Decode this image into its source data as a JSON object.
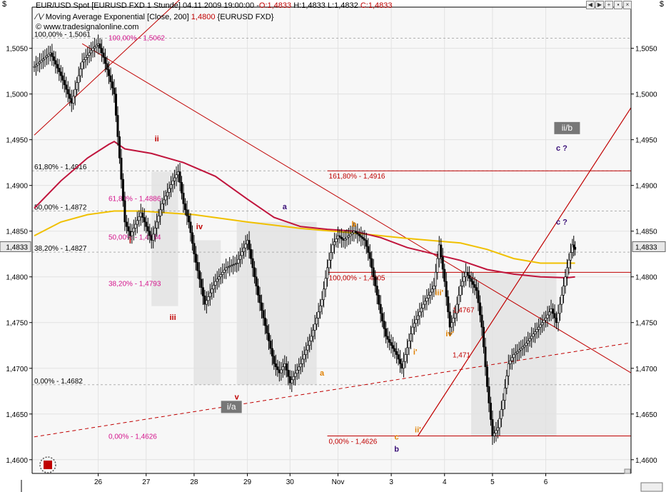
{
  "header": {
    "symbol_line": "EUR/USD Spot [EURUSD FXD  1 Stunde]",
    "datetime": "04.11.2009 19:00:00",
    "ohlc": {
      "O": "O:1,4833",
      "H": "H:1,4833",
      "L": "L:1,4832",
      "C": "C:1,4833"
    },
    "indicator": "Moving Average Exponential [Close, 200]",
    "indicator_value": "1,4800",
    "indicator_symbol": "{EURUSD FXD}",
    "copyright": "© www.tradesignalonline.com",
    "currency_left": "$",
    "currency_right": "$"
  },
  "window_buttons": [
    "arrow-left-icon",
    "arrow-right-icon",
    "zoom-icon",
    "pin-icon",
    "close-icon"
  ],
  "colors": {
    "price": "#000000",
    "ema200": "#c0143c",
    "ema_yellow": "#f0c000",
    "fib_left": "#000000",
    "fib_magenta": "#d4148c",
    "fib_red": "#c00000",
    "wave_red": "#c00000",
    "wave_purple": "#3a1078",
    "wave_orange": "#e08000",
    "box": "#e6e6e6",
    "price_tag_bg": "#e8e8e8"
  },
  "chart_data": {
    "type": "candlestick",
    "x_ticks": [
      "26",
      "27",
      "28",
      "29",
      "30",
      "Nov",
      "3",
      "4",
      "5",
      "6"
    ],
    "y_ticks": [
      "1,5050",
      "1,5000",
      "1,4950",
      "1,4900",
      "1,4850",
      "1,4800",
      "1,4750",
      "1,4700",
      "1,4650",
      "1,4600"
    ],
    "ylim": [
      1.4585,
      1.5095
    ],
    "last_price_tag": "1,4833",
    "price_path": [
      [
        0,
        1.503
      ],
      [
        3,
        1.5045
      ],
      [
        5,
        1.502
      ],
      [
        7,
        1.499
      ],
      [
        9,
        1.5035
      ],
      [
        11,
        1.505
      ],
      [
        12,
        1.5055
      ],
      [
        13,
        1.504
      ],
      [
        14,
        1.502
      ],
      [
        15,
        1.5
      ],
      [
        16,
        1.493
      ],
      [
        17,
        1.486
      ],
      [
        18,
        1.4845
      ],
      [
        20,
        1.487
      ],
      [
        22,
        1.484
      ],
      [
        24,
        1.488
      ],
      [
        26,
        1.4905
      ],
      [
        27,
        1.4915
      ],
      [
        28,
        1.488
      ],
      [
        29,
        1.486
      ],
      [
        30,
        1.4825
      ],
      [
        32,
        1.477
      ],
      [
        34,
        1.4795
      ],
      [
        36,
        1.481
      ],
      [
        38,
        1.4815
      ],
      [
        40,
        1.484
      ],
      [
        41,
        1.481
      ],
      [
        42,
        1.478
      ],
      [
        44,
        1.473
      ],
      [
        45,
        1.4705
      ],
      [
        46,
        1.4695
      ],
      [
        47,
        1.4705
      ],
      [
        48,
        1.4684
      ],
      [
        50,
        1.4705
      ],
      [
        52,
        1.4735
      ],
      [
        54,
        1.4775
      ],
      [
        55,
        1.481
      ],
      [
        56,
        1.4835
      ],
      [
        57,
        1.4845
      ],
      [
        58,
        1.484
      ],
      [
        60,
        1.485
      ],
      [
        62,
        1.484
      ],
      [
        63,
        1.482
      ],
      [
        64,
        1.479
      ],
      [
        65,
        1.476
      ],
      [
        66,
        1.4735
      ],
      [
        68,
        1.4715
      ],
      [
        69,
        1.47
      ],
      [
        71,
        1.4745
      ],
      [
        73,
        1.477
      ],
      [
        75,
        1.479
      ],
      [
        76,
        1.4835
      ],
      [
        77,
        1.4795
      ],
      [
        78,
        1.4745
      ],
      [
        79,
        1.476
      ],
      [
        80,
        1.479
      ],
      [
        81,
        1.4805
      ],
      [
        82,
        1.4795
      ],
      [
        83,
        1.4785
      ],
      [
        84,
        1.4745
      ],
      [
        85,
        1.468
      ],
      [
        86,
        1.4626
      ],
      [
        87,
        1.4635
      ],
      [
        88,
        1.4665
      ],
      [
        89,
        1.4705
      ],
      [
        90,
        1.4715
      ],
      [
        92,
        1.4725
      ],
      [
        94,
        1.474
      ],
      [
        96,
        1.4755
      ],
      [
        97,
        1.4765
      ],
      [
        98,
        1.475
      ],
      [
        99,
        1.478
      ],
      [
        100,
        1.481
      ],
      [
        101,
        1.4835
      ],
      [
        101.5,
        1.483
      ]
    ],
    "x_domain": [
      0,
      112
    ],
    "ema200": [
      [
        0,
        1.4875
      ],
      [
        5,
        1.4905
      ],
      [
        10,
        1.493
      ],
      [
        14,
        1.4945
      ],
      [
        15,
        1.4948
      ],
      [
        17,
        1.494
      ],
      [
        22,
        1.4935
      ],
      [
        28,
        1.4925
      ],
      [
        34,
        1.491
      ],
      [
        40,
        1.4885
      ],
      [
        45,
        1.4865
      ],
      [
        50,
        1.4855
      ],
      [
        55,
        1.4852
      ],
      [
        60,
        1.485
      ],
      [
        65,
        1.4843
      ],
      [
        70,
        1.4832
      ],
      [
        75,
        1.4825
      ],
      [
        80,
        1.4818
      ],
      [
        85,
        1.4808
      ],
      [
        90,
        1.4803
      ],
      [
        95,
        1.48
      ],
      [
        100,
        1.4799
      ],
      [
        101.5,
        1.48
      ]
    ],
    "ema_yellow": [
      [
        0,
        1.4845
      ],
      [
        5,
        1.486
      ],
      [
        10,
        1.4868
      ],
      [
        15,
        1.4872
      ],
      [
        20,
        1.4872
      ],
      [
        30,
        1.4868
      ],
      [
        40,
        1.486
      ],
      [
        50,
        1.4853
      ],
      [
        60,
        1.4848
      ],
      [
        70,
        1.4842
      ],
      [
        80,
        1.4837
      ],
      [
        85,
        1.483
      ],
      [
        90,
        1.482
      ],
      [
        95,
        1.4815
      ],
      [
        100,
        1.4815
      ],
      [
        101.5,
        1.4815
      ]
    ],
    "fib_left": [
      {
        "label": "100,00% - 1,5061",
        "value": 1.5061
      },
      {
        "label": "61,80% - 1,4916",
        "value": 1.4916
      },
      {
        "label": "50,00% - 1,4872",
        "value": 1.4872
      },
      {
        "label": "38,20% - 1,4827",
        "value": 1.4827
      },
      {
        "label": "0,00% - 1,4682",
        "value": 1.4682
      }
    ],
    "fib_magenta": [
      {
        "label": "100,00% - 1,5062",
        "value": 1.5062
      },
      {
        "label": "61,80% - 1,4886",
        "value": 1.4886
      },
      {
        "label": "50,00% - 1,4844",
        "value": 1.4844
      },
      {
        "label": "38,20% - 1,4793",
        "value": 1.4793
      },
      {
        "label": "0,00% - 1,4626",
        "value": 1.4626
      }
    ],
    "fib_red": [
      {
        "label": "161,80% - 1,4916",
        "value": 1.4916
      },
      {
        "label": "100,00% - 1,4805",
        "value": 1.4805
      },
      {
        "label": "0,00% - 1,4626",
        "value": 1.4626
      }
    ],
    "boxes": [
      {
        "x0": 22,
        "x1": 27,
        "y0": 1.4768,
        "y1": 1.4915
      },
      {
        "x0": 30,
        "x1": 35,
        "y0": 1.4682,
        "y1": 1.484
      },
      {
        "x0": 38,
        "x1": 53,
        "y0": 1.4682,
        "y1": 1.486
      },
      {
        "x0": 82,
        "x1": 98,
        "y0": 1.4626,
        "y1": 1.4805
      }
    ],
    "wave_labels": [
      {
        "text": "i",
        "x": 18,
        "y": 1.4837,
        "color": "wave_red"
      },
      {
        "text": "ii",
        "x": 23,
        "y": 1.4948,
        "color": "wave_red"
      },
      {
        "text": "iii",
        "x": 26,
        "y": 1.4753,
        "color": "wave_red"
      },
      {
        "text": "iv",
        "x": 31,
        "y": 1.4852,
        "color": "wave_red"
      },
      {
        "text": "v",
        "x": 38,
        "y": 1.4666,
        "color": "wave_red"
      },
      {
        "text": "a",
        "x": 47,
        "y": 1.4874,
        "color": "wave_purple"
      },
      {
        "text": "a",
        "x": 54,
        "y": 1.4692,
        "color": "wave_orange"
      },
      {
        "text": "b",
        "x": 60,
        "y": 1.4855,
        "color": "wave_orange"
      },
      {
        "text": "c",
        "x": 68,
        "y": 1.4622,
        "color": "wave_orange"
      },
      {
        "text": "b",
        "x": 68,
        "y": 1.4609,
        "color": "wave_purple"
      },
      {
        "text": "c ?",
        "x": 99,
        "y": 1.4938,
        "color": "wave_purple"
      },
      {
        "text": "c ?",
        "x": 99,
        "y": 1.4857,
        "color": "wave_purple"
      },
      {
        "text": "i'",
        "x": 71.5,
        "y": 1.4715,
        "color": "wave_orange"
      },
      {
        "text": "ii'",
        "x": 72,
        "y": 1.463,
        "color": "wave_orange"
      },
      {
        "text": "iii'",
        "x": 76,
        "y": 1.478,
        "color": "wave_orange"
      },
      {
        "text": "iv'",
        "x": 78,
        "y": 1.4735,
        "color": "wave_orange"
      }
    ],
    "boxed_labels": [
      {
        "text": "i/a",
        "x": 37,
        "y": 1.4655
      },
      {
        "text": "ii/b",
        "x": 100,
        "y": 1.496
      }
    ],
    "point_labels": [
      {
        "text": "1,4767",
        "x": 78.5,
        "y": 1.4761
      },
      {
        "text": "1,471",
        "x": 78.5,
        "y": 1.4712
      }
    ]
  }
}
